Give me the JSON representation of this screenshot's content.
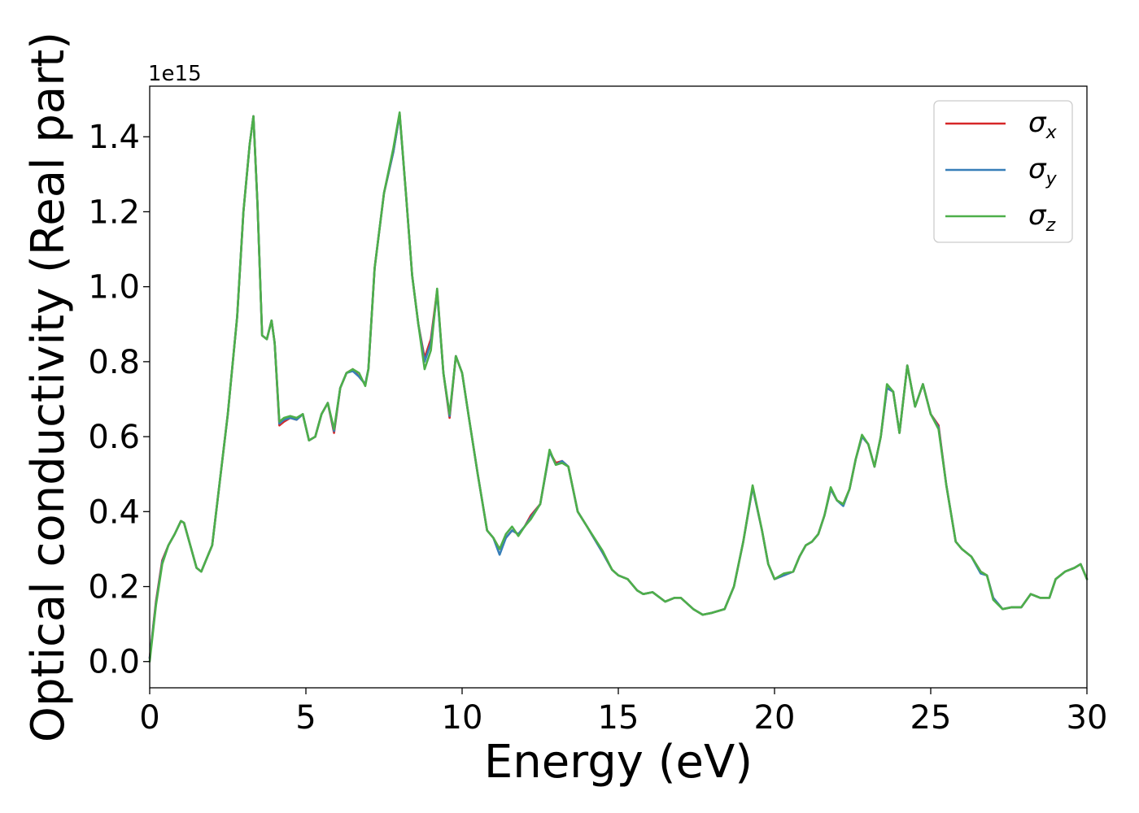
{
  "chart_data": {
    "type": "line",
    "xlabel": "Energy (eV)",
    "ylabel": "Optical conductivity (Real part)",
    "y_offset_label": "1e15",
    "xlim": [
      0,
      30
    ],
    "ylim": [
      -0.07,
      1.535
    ],
    "x_ticks": [
      0,
      5,
      10,
      15,
      20,
      25,
      30
    ],
    "x_tick_labels": [
      "0",
      "5",
      "10",
      "15",
      "20",
      "25",
      "30"
    ],
    "y_ticks": [
      0.0,
      0.2,
      0.4,
      0.6,
      0.8,
      1.0,
      1.2,
      1.4
    ],
    "y_tick_labels": [
      "0.0",
      "0.2",
      "0.4",
      "0.6",
      "0.8",
      "1.0",
      "1.2",
      "1.4"
    ],
    "grid": false,
    "legend_position": "top-right",
    "x": [
      0,
      0.2,
      0.4,
      0.6,
      0.8,
      1.0,
      1.1,
      1.3,
      1.5,
      1.65,
      1.8,
      2.0,
      2.2,
      2.5,
      2.8,
      3.0,
      3.2,
      3.32,
      3.45,
      3.6,
      3.75,
      3.9,
      4.0,
      4.15,
      4.3,
      4.5,
      4.7,
      4.9,
      5.1,
      5.3,
      5.5,
      5.7,
      5.9,
      6.1,
      6.3,
      6.5,
      6.7,
      6.9,
      7.0,
      7.2,
      7.5,
      7.8,
      8.0,
      8.2,
      8.4,
      8.6,
      8.8,
      9.0,
      9.2,
      9.4,
      9.6,
      9.8,
      10.0,
      10.2,
      10.5,
      10.8,
      11.0,
      11.2,
      11.4,
      11.6,
      11.8,
      12.0,
      12.2,
      12.5,
      12.8,
      13.0,
      13.2,
      13.4,
      13.7,
      14.0,
      14.5,
      14.8,
      15.0,
      15.3,
      15.6,
      15.8,
      16.1,
      16.5,
      16.8,
      17.0,
      17.4,
      17.7,
      18.0,
      18.4,
      18.7,
      19.0,
      19.3,
      19.6,
      19.8,
      20.0,
      20.3,
      20.6,
      20.8,
      21.0,
      21.2,
      21.4,
      21.6,
      21.8,
      22.0,
      22.2,
      22.4,
      22.6,
      22.8,
      23.0,
      23.2,
      23.4,
      23.6,
      23.8,
      24.0,
      24.25,
      24.5,
      24.75,
      25.0,
      25.25,
      25.5,
      25.8,
      26.0,
      26.3,
      26.6,
      26.8,
      27.0,
      27.3,
      27.6,
      27.9,
      28.2,
      28.5,
      28.8,
      29.0,
      29.3,
      29.6,
      29.8,
      30.0
    ],
    "series": [
      {
        "name": "σx",
        "label_base": "σ",
        "label_sub": "x",
        "color": "#d62728",
        "values": [
          0.01,
          0.16,
          0.27,
          0.31,
          0.34,
          0.375,
          0.37,
          0.31,
          0.25,
          0.24,
          0.27,
          0.31,
          0.45,
          0.66,
          0.92,
          1.2,
          1.38,
          1.455,
          1.22,
          0.87,
          0.86,
          0.91,
          0.85,
          0.63,
          0.64,
          0.65,
          0.645,
          0.66,
          0.59,
          0.6,
          0.66,
          0.69,
          0.61,
          0.73,
          0.77,
          0.78,
          0.76,
          0.74,
          0.78,
          1.05,
          1.25,
          1.36,
          1.46,
          1.25,
          1.03,
          0.9,
          0.81,
          0.86,
          0.99,
          0.77,
          0.65,
          0.815,
          0.77,
          0.66,
          0.5,
          0.35,
          0.33,
          0.3,
          0.33,
          0.35,
          0.34,
          0.36,
          0.39,
          0.42,
          0.56,
          0.53,
          0.535,
          0.52,
          0.4,
          0.36,
          0.29,
          0.245,
          0.23,
          0.22,
          0.19,
          0.18,
          0.185,
          0.16,
          0.17,
          0.17,
          0.14,
          0.125,
          0.13,
          0.14,
          0.2,
          0.32,
          0.465,
          0.35,
          0.26,
          0.22,
          0.23,
          0.24,
          0.28,
          0.31,
          0.32,
          0.34,
          0.39,
          0.46,
          0.43,
          0.42,
          0.46,
          0.54,
          0.6,
          0.58,
          0.52,
          0.6,
          0.73,
          0.72,
          0.61,
          0.79,
          0.68,
          0.74,
          0.66,
          0.63,
          0.47,
          0.32,
          0.3,
          0.28,
          0.24,
          0.23,
          0.17,
          0.14,
          0.145,
          0.145,
          0.18,
          0.17,
          0.17,
          0.22,
          0.24,
          0.25,
          0.26,
          0.22
        ]
      },
      {
        "name": "σy",
        "label_base": "σ",
        "label_sub": "y",
        "color": "#377eb8",
        "values": [
          0.008,
          0.155,
          0.265,
          0.31,
          0.34,
          0.375,
          0.37,
          0.31,
          0.25,
          0.24,
          0.27,
          0.31,
          0.45,
          0.66,
          0.92,
          1.2,
          1.38,
          1.455,
          1.22,
          0.87,
          0.86,
          0.91,
          0.85,
          0.635,
          0.645,
          0.65,
          0.645,
          0.66,
          0.59,
          0.6,
          0.66,
          0.69,
          0.615,
          0.73,
          0.77,
          0.775,
          0.76,
          0.74,
          0.78,
          1.05,
          1.25,
          1.36,
          1.46,
          1.25,
          1.03,
          0.9,
          0.8,
          0.85,
          0.985,
          0.77,
          0.655,
          0.815,
          0.77,
          0.66,
          0.5,
          0.35,
          0.33,
          0.285,
          0.33,
          0.35,
          0.34,
          0.36,
          0.385,
          0.42,
          0.56,
          0.525,
          0.535,
          0.52,
          0.4,
          0.36,
          0.29,
          0.245,
          0.23,
          0.22,
          0.19,
          0.18,
          0.185,
          0.16,
          0.17,
          0.17,
          0.14,
          0.125,
          0.13,
          0.14,
          0.2,
          0.32,
          0.465,
          0.35,
          0.26,
          0.22,
          0.23,
          0.24,
          0.28,
          0.31,
          0.32,
          0.34,
          0.39,
          0.46,
          0.43,
          0.415,
          0.46,
          0.54,
          0.6,
          0.58,
          0.52,
          0.6,
          0.73,
          0.72,
          0.61,
          0.79,
          0.68,
          0.74,
          0.66,
          0.625,
          0.47,
          0.32,
          0.3,
          0.28,
          0.235,
          0.23,
          0.17,
          0.14,
          0.145,
          0.145,
          0.18,
          0.17,
          0.17,
          0.22,
          0.24,
          0.25,
          0.26,
          0.22
        ]
      },
      {
        "name": "σz",
        "label_base": "σ",
        "label_sub": "z",
        "color": "#4daf4a",
        "values": [
          0.0,
          0.15,
          0.26,
          0.31,
          0.34,
          0.375,
          0.37,
          0.31,
          0.25,
          0.24,
          0.27,
          0.31,
          0.45,
          0.66,
          0.92,
          1.2,
          1.38,
          1.455,
          1.22,
          0.87,
          0.86,
          0.91,
          0.85,
          0.64,
          0.65,
          0.655,
          0.65,
          0.66,
          0.59,
          0.6,
          0.66,
          0.69,
          0.62,
          0.73,
          0.77,
          0.78,
          0.77,
          0.735,
          0.78,
          1.05,
          1.25,
          1.37,
          1.465,
          1.25,
          1.03,
          0.9,
          0.78,
          0.83,
          0.995,
          0.77,
          0.66,
          0.815,
          0.77,
          0.66,
          0.5,
          0.35,
          0.33,
          0.3,
          0.34,
          0.36,
          0.335,
          0.36,
          0.38,
          0.42,
          0.565,
          0.525,
          0.53,
          0.52,
          0.4,
          0.36,
          0.295,
          0.245,
          0.23,
          0.22,
          0.19,
          0.18,
          0.185,
          0.16,
          0.17,
          0.17,
          0.14,
          0.125,
          0.13,
          0.14,
          0.2,
          0.32,
          0.47,
          0.35,
          0.26,
          0.22,
          0.235,
          0.24,
          0.28,
          0.31,
          0.32,
          0.34,
          0.39,
          0.465,
          0.43,
          0.42,
          0.46,
          0.54,
          0.605,
          0.58,
          0.52,
          0.6,
          0.74,
          0.72,
          0.61,
          0.79,
          0.68,
          0.74,
          0.66,
          0.62,
          0.47,
          0.32,
          0.3,
          0.28,
          0.24,
          0.23,
          0.165,
          0.14,
          0.145,
          0.145,
          0.18,
          0.17,
          0.17,
          0.22,
          0.24,
          0.25,
          0.26,
          0.22
        ]
      }
    ]
  }
}
